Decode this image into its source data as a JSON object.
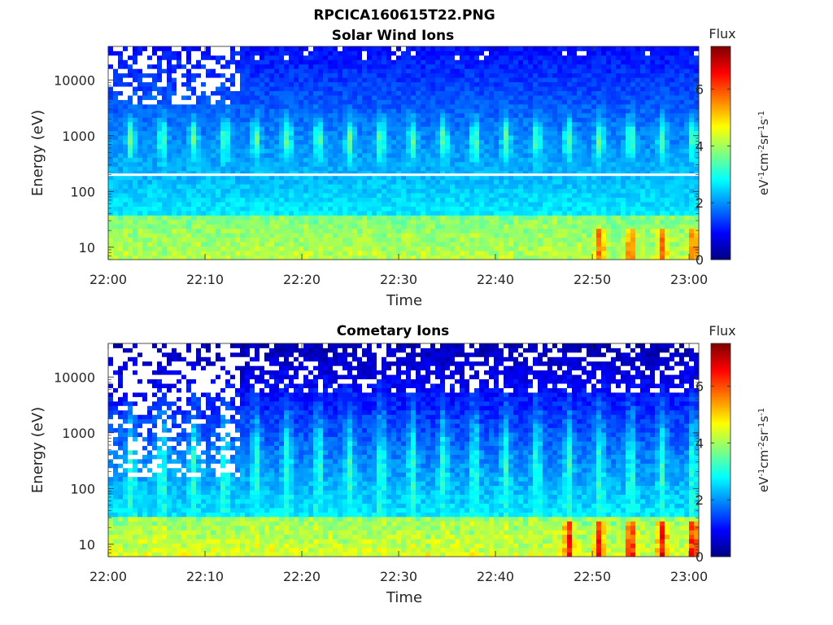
{
  "figure": {
    "title": "RPCICA160615T22.PNG"
  },
  "chart_data": [
    {
      "type": "heatmap",
      "title": "Solar Wind Ions",
      "xlabel": "Time",
      "ylabel": "Energy (eV)",
      "x_ticks": [
        "22:00",
        "22:10",
        "22:20",
        "22:30",
        "22:40",
        "22:50",
        "23:00"
      ],
      "xlim": [
        "22:00",
        "23:01"
      ],
      "y_scale": "log",
      "y_ticks": [
        "10",
        "100",
        "1000",
        "10000"
      ],
      "ylim": [
        6,
        40000
      ],
      "colorbar": {
        "title": "Flux",
        "unit": "eV-1cm-2sr-1s-1",
        "ticks": [
          "0",
          "2",
          "4",
          "6"
        ],
        "range": [
          0,
          7.5
        ]
      },
      "features": {
        "gap_energy_eV": 200,
        "beam_energy_eV": 900,
        "pulse_period_min": 3.2
      }
    },
    {
      "type": "heatmap",
      "title": "Cometary Ions",
      "xlabel": "Time",
      "ylabel": "Energy (eV)",
      "x_ticks": [
        "22:00",
        "22:10",
        "22:20",
        "22:30",
        "22:40",
        "22:50",
        "23:00"
      ],
      "xlim": [
        "22:00",
        "23:01"
      ],
      "y_scale": "log",
      "y_ticks": [
        "10",
        "100",
        "1000",
        "10000"
      ],
      "ylim": [
        6,
        40000
      ],
      "colorbar": {
        "title": "Flux",
        "unit": "eV-1cm-2sr-1s-1",
        "ticks": [
          "0",
          "2",
          "4",
          "6"
        ],
        "range": [
          0,
          7.5
        ]
      },
      "features": {
        "beam_energy_eV": 900,
        "pulse_period_min": 3.2
      }
    }
  ]
}
